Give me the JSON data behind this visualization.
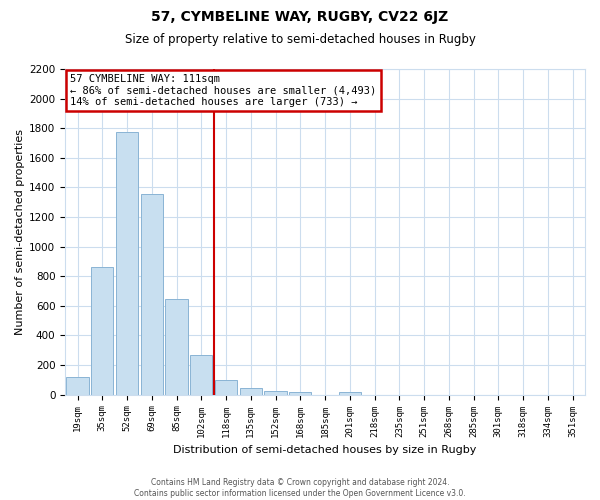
{
  "title": "57, CYMBELINE WAY, RUGBY, CV22 6JZ",
  "subtitle": "Size of property relative to semi-detached houses in Rugby",
  "xlabel": "Distribution of semi-detached houses by size in Rugby",
  "ylabel": "Number of semi-detached properties",
  "bar_labels": [
    "19sqm",
    "35sqm",
    "52sqm",
    "69sqm",
    "85sqm",
    "102sqm",
    "118sqm",
    "135sqm",
    "152sqm",
    "168sqm",
    "185sqm",
    "201sqm",
    "218sqm",
    "235sqm",
    "251sqm",
    "268sqm",
    "285sqm",
    "301sqm",
    "318sqm",
    "334sqm",
    "351sqm"
  ],
  "bar_values": [
    120,
    865,
    1775,
    1355,
    645,
    270,
    100,
    45,
    25,
    15,
    0,
    15,
    0,
    0,
    0,
    0,
    0,
    0,
    0,
    0,
    0
  ],
  "bar_color": "#c8dff0",
  "bar_edge_color": "#8ab4d4",
  "vline_x_index": 6,
  "vline_color": "#cc0000",
  "annotation_title": "57 CYMBELINE WAY: 111sqm",
  "annotation_line1": "← 86% of semi-detached houses are smaller (4,493)",
  "annotation_line2": "14% of semi-detached houses are larger (733) →",
  "box_color": "#ffffff",
  "box_edge_color": "#cc0000",
  "ylim": [
    0,
    2200
  ],
  "yticks": [
    0,
    200,
    400,
    600,
    800,
    1000,
    1200,
    1400,
    1600,
    1800,
    2000,
    2200
  ],
  "footer_line1": "Contains HM Land Registry data © Crown copyright and database right 2024.",
  "footer_line2": "Contains public sector information licensed under the Open Government Licence v3.0.",
  "background_color": "#ffffff",
  "grid_color": "#ccddee"
}
